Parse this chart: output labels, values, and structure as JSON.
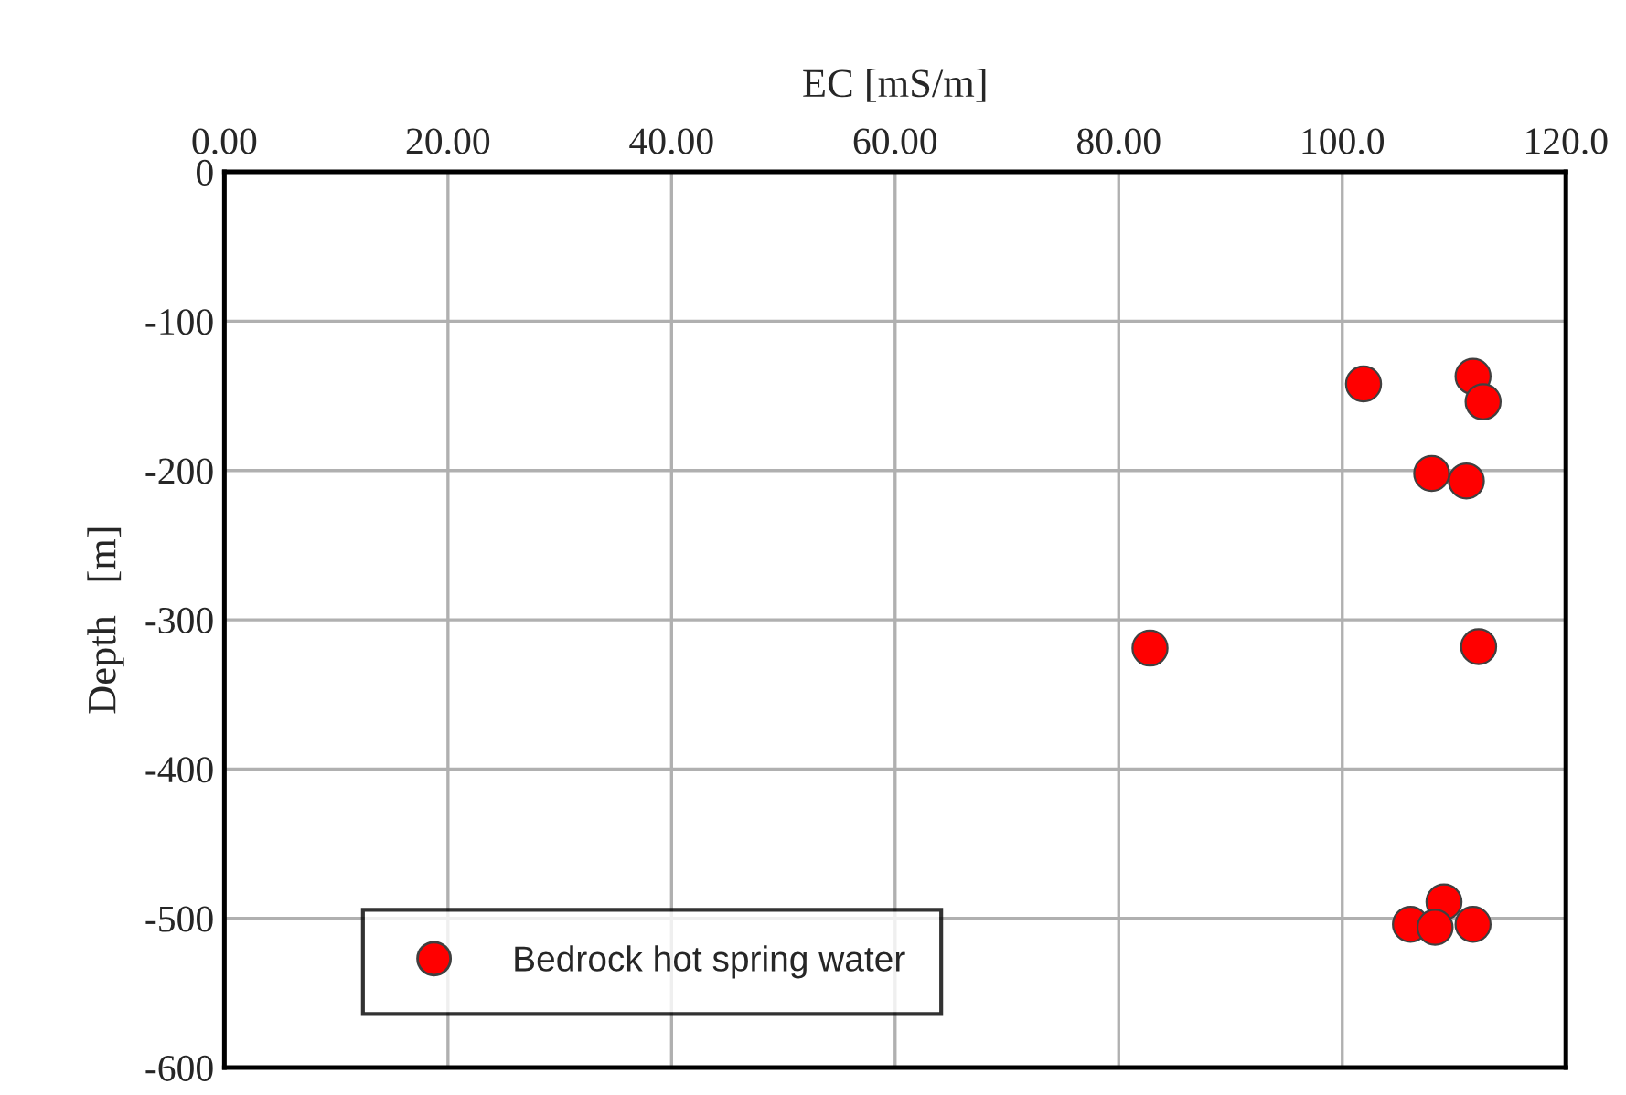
{
  "chart_data": {
    "type": "scatter",
    "xlabel": "EC [mS/m]",
    "ylabel": "Depth　[m]",
    "xlim": [
      0,
      120
    ],
    "ylim": [
      -600,
      0
    ],
    "xticks": [
      {
        "value": 0,
        "label": "0.00"
      },
      {
        "value": 20,
        "label": "20.00"
      },
      {
        "value": 40,
        "label": "40.00"
      },
      {
        "value": 60,
        "label": "60.00"
      },
      {
        "value": 80,
        "label": "80.00"
      },
      {
        "value": 100,
        "label": "100.0"
      },
      {
        "value": 120,
        "label": "120.0"
      }
    ],
    "yticks": [
      0,
      -100,
      -200,
      -300,
      -400,
      -500,
      -600
    ],
    "grid": true,
    "legend": "bottom left",
    "marker": "circle",
    "series": [
      {
        "name": "Bedrock hot spring water",
        "color": "#ff0000",
        "x": [
          101.9,
          111.7,
          112.6,
          108.0,
          111.1,
          82.8,
          112.2,
          109.1,
          106.1,
          108.3,
          111.7
        ],
        "values": [
          -142,
          -137,
          -154,
          -202,
          -207,
          -319,
          -318,
          -489,
          -504,
          -506,
          -504
        ]
      }
    ]
  }
}
